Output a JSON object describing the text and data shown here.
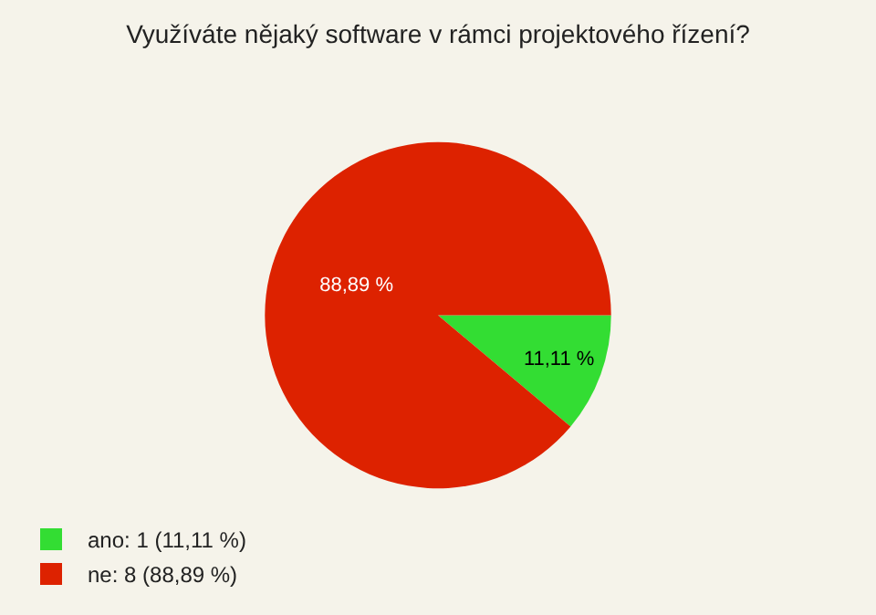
{
  "chart_data": {
    "type": "pie",
    "title": "Využíváte nějaký software v rámci projektového řízení?",
    "categories": [
      "ano: 1 (11,11 %)",
      "ne: 8 (88,89 %)"
    ],
    "values": [
      11.11,
      88.89
    ],
    "colors": [
      "#33dd33",
      "#dd2200"
    ],
    "value_labels": [
      "11,11 %",
      "88,89 %"
    ],
    "legend": "bottom left"
  }
}
